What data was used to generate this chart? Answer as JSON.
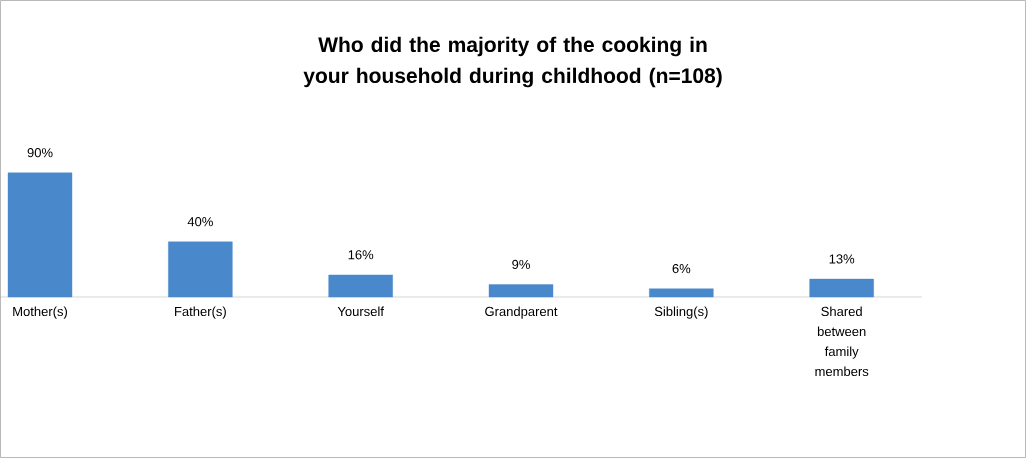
{
  "chart_data": {
    "type": "bar",
    "title": "Who did the majority of the cooking in your household during childhood (n=108)",
    "categories": [
      "Mother(s)",
      "Father(s)",
      "Yourself",
      "Grandparent",
      "Sibling(s)",
      "Shared between family members"
    ],
    "values": [
      90,
      40,
      16,
      9,
      6,
      13
    ],
    "value_labels": [
      "90%",
      "40%",
      "16%",
      "9%",
      "6%",
      "13%"
    ],
    "color": "#4a88cc"
  }
}
